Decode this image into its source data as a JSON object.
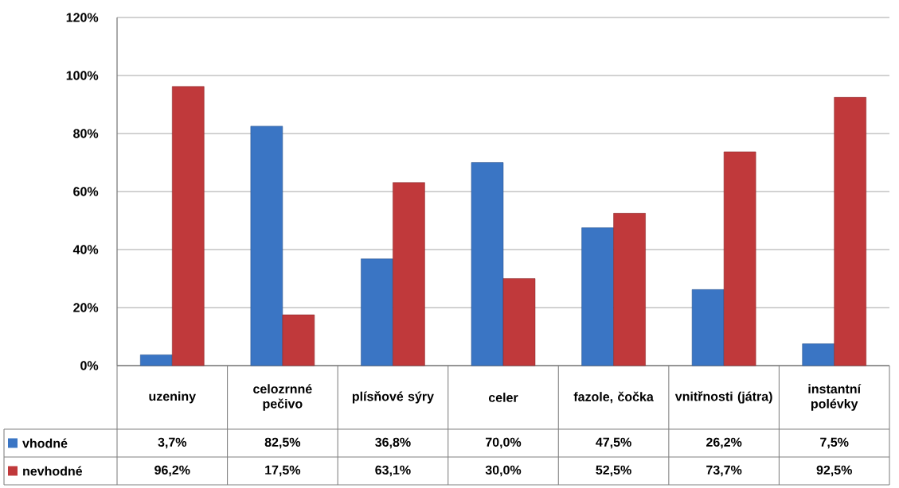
{
  "chart_data": {
    "type": "bar",
    "categories": [
      "uzeniny",
      "celozrnné pečivo",
      "plísňové sýry",
      "celer",
      "fazole, čočka",
      "vnitřnosti (játra)",
      "instantní polévky"
    ],
    "series": [
      {
        "name": "vhodné",
        "color": "#3a75c4",
        "values": [
          3.7,
          82.5,
          36.8,
          70.0,
          47.5,
          26.2,
          7.5
        ],
        "value_labels": [
          "3,7%",
          "82,5%",
          "36,8%",
          "70,0%",
          "47,5%",
          "26,2%",
          "7,5%"
        ]
      },
      {
        "name": "nevhodné",
        "color": "#c0393b",
        "values": [
          96.2,
          17.5,
          63.1,
          30.0,
          52.5,
          73.7,
          92.5
        ],
        "value_labels": [
          "96,2%",
          "17,5%",
          "63,1%",
          "30,0%",
          "52,5%",
          "73,7%",
          "92,5%"
        ]
      }
    ],
    "ylim": [
      0,
      120
    ],
    "yticks": [
      {
        "value": 0,
        "label": "0%"
      },
      {
        "value": 20,
        "label": "20%"
      },
      {
        "value": 40,
        "label": "40%"
      },
      {
        "value": 60,
        "label": "60%"
      },
      {
        "value": 80,
        "label": "80%"
      },
      {
        "value": 100,
        "label": "100%"
      },
      {
        "value": 120,
        "label": "120%"
      }
    ],
    "grid": "y",
    "legend": "bottom left"
  }
}
